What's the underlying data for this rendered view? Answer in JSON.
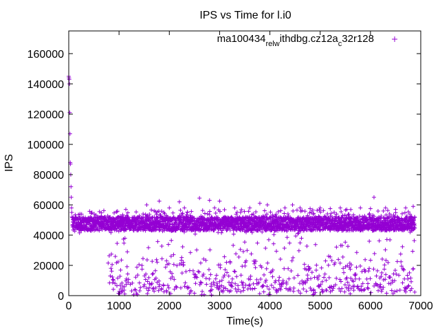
{
  "chart_data": {
    "type": "scatter",
    "title": "IPS vs Time for l.i0",
    "xlabel": "Time(s)",
    "ylabel": "IPS",
    "xlim": [
      0,
      7000
    ],
    "ylim": [
      0,
      175000
    ],
    "xticks": [
      0,
      1000,
      2000,
      3000,
      4000,
      5000,
      6000,
      7000
    ],
    "yticks": [
      0,
      20000,
      40000,
      60000,
      80000,
      100000,
      120000,
      140000,
      160000
    ],
    "grid": false,
    "legend_position": "top-right",
    "series": [
      {
        "name": "ma100434_rel_withdbg.cz12a_c32r128",
        "legend_parts": {
          "base": "ma100434",
          "s1": "rel",
          "mid": "w",
          "s2": "ithdbg.cz12a",
          "s3": "c",
          "tail": "32r128"
        },
        "color": "#9400d3",
        "marker": "+",
        "description": "Dense band of points around 43000–52000 IPS across 0–6900 s; sparse scatter from 0 to 40000 after ~800 s; startup spike near 145000 at t≈0; occasional outliers up to ~65000.",
        "points": [
          [
            0,
            145000
          ],
          [
            5,
            144000
          ],
          [
            10,
            143000
          ],
          [
            15,
            140000
          ],
          [
            20,
            121000
          ],
          [
            25,
            107000
          ],
          [
            30,
            88000
          ],
          [
            35,
            87000
          ],
          [
            40,
            80000
          ],
          [
            45,
            72000
          ],
          [
            50,
            65000
          ],
          [
            55,
            58000
          ],
          [
            60,
            55000
          ],
          [
            65,
            52000
          ],
          [
            1550,
            60000
          ],
          [
            1800,
            62500
          ],
          [
            2000,
            58000
          ],
          [
            2200,
            62000
          ],
          [
            2300,
            58000
          ],
          [
            2600,
            64500
          ],
          [
            2800,
            63000
          ],
          [
            2900,
            58000
          ],
          [
            3000,
            62500
          ],
          [
            3300,
            58000
          ],
          [
            3600,
            58000
          ],
          [
            3800,
            61000
          ],
          [
            3950,
            60000
          ],
          [
            4300,
            58000
          ],
          [
            4450,
            60000
          ],
          [
            4600,
            58000
          ],
          [
            4800,
            57500
          ],
          [
            5000,
            58000
          ],
          [
            5200,
            57500
          ],
          [
            5400,
            58000
          ],
          [
            5800,
            58000
          ],
          [
            6000,
            57500
          ],
          [
            6070,
            65000
          ],
          [
            6300,
            58000
          ],
          [
            6500,
            57000
          ],
          [
            6700,
            58000
          ],
          [
            6850,
            59000
          ]
        ]
      }
    ]
  }
}
